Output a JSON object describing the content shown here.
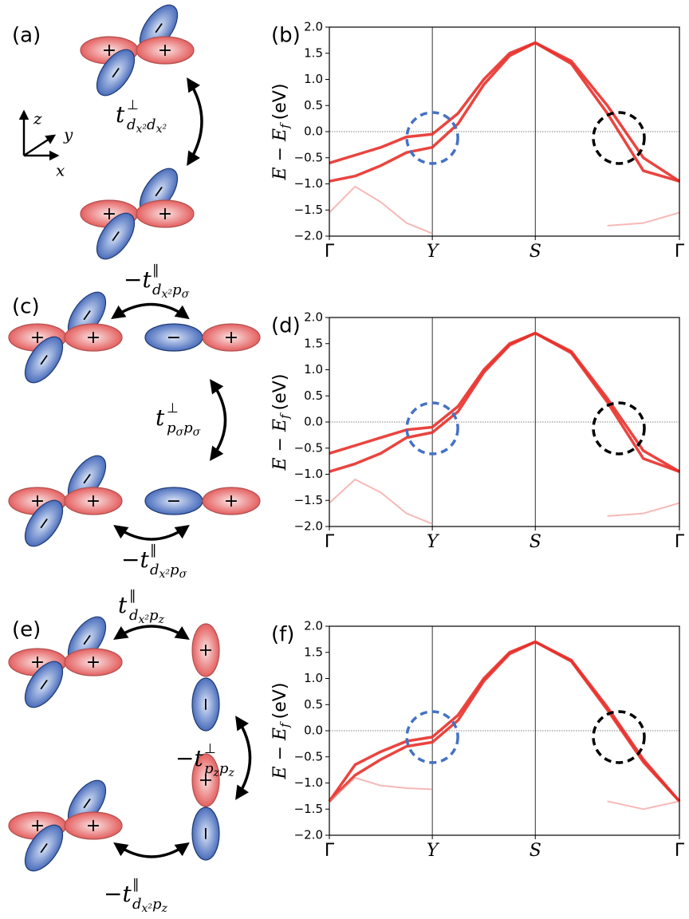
{
  "diagram": {
    "panels": [
      "(a)",
      "(c)",
      "(e)"
    ],
    "axes": {
      "z": "z",
      "y": "y",
      "x": "x"
    },
    "clusters": [
      {
        "signs": [
          "+",
          "+",
          "−",
          "−"
        ]
      },
      {
        "signs": [
          "+",
          "+",
          "−",
          "−"
        ]
      },
      {
        "signs": [
          "+",
          "+",
          "−",
          "−"
        ]
      },
      {
        "signs": [
          "+",
          "+",
          "−",
          "−"
        ]
      },
      {
        "signs": [
          "+",
          "+",
          "−",
          "−"
        ]
      },
      {
        "signs": [
          "+",
          "+",
          "−",
          "−"
        ]
      }
    ],
    "p_pairs": [
      {
        "signs": [
          "−",
          "+"
        ]
      },
      {
        "signs": [
          "−",
          "+"
        ]
      },
      {
        "signs": [
          "+",
          "−"
        ]
      },
      {
        "signs": [
          "+",
          "−"
        ]
      }
    ],
    "hoppings": [
      {
        "symbol": "t",
        "sup": "⊥",
        "sub": [
          {
            "s": "d",
            "ss": "x²"
          },
          {
            "s": "d",
            "ss": "x²"
          }
        ]
      },
      {
        "sign": "−",
        "symbol": "t",
        "sup": "∥",
        "sub": [
          {
            "s": "d",
            "ss": "x²"
          },
          {
            "s": "p",
            "ss": "σ"
          }
        ]
      },
      {
        "symbol": "t",
        "sup": "⊥",
        "sub": [
          {
            "s": "p",
            "ss": "σ"
          },
          {
            "s": "p",
            "ss": "σ"
          }
        ]
      },
      {
        "sign": "−",
        "symbol": "t",
        "sup": "∥",
        "sub": [
          {
            "s": "d",
            "ss": "x²"
          },
          {
            "s": "p",
            "ss": "σ"
          }
        ]
      },
      {
        "symbol": "t",
        "sup": "∥",
        "sub": [
          {
            "s": "d",
            "ss": "x²"
          },
          {
            "s": "p",
            "ss": "z"
          }
        ]
      },
      {
        "sign": "−",
        "symbol": "t",
        "sup": "⊥",
        "sub": [
          {
            "s": "p",
            "ss": "z"
          },
          {
            "s": "p",
            "ss": "z"
          }
        ]
      },
      {
        "sign": "−",
        "symbol": "t",
        "sup": "∥",
        "sub": [
          {
            "s": "d",
            "ss": "x²"
          },
          {
            "s": "p",
            "ss": "z"
          }
        ]
      }
    ]
  },
  "chart_data": [
    {
      "type": "line",
      "panel": "(b)",
      "ylabel": {
        "main": "E − E",
        "sub": "f",
        "unit": "(eV)"
      },
      "xlim": [
        0,
        3.4
      ],
      "xticks": [
        {
          "value": 0,
          "label": "Γ"
        },
        {
          "value": 1,
          "label": "Y"
        },
        {
          "value": 2,
          "label": "S"
        },
        {
          "value": 3.4,
          "label": "Γ"
        }
      ],
      "ylim": [
        -2,
        2
      ],
      "yticks": [
        {
          "value": -2,
          "label": "−2.0"
        },
        {
          "value": -1.5,
          "label": "−1.5"
        },
        {
          "value": -1,
          "label": "−1.0"
        },
        {
          "value": -0.5,
          "label": "−0.5"
        },
        {
          "value": 0,
          "label": "0.0"
        },
        {
          "value": 0.5,
          "label": "0.5"
        },
        {
          "value": 1,
          "label": "1.0"
        },
        {
          "value": 1.5,
          "label": "1.5"
        },
        {
          "value": 2,
          "label": "2.0"
        }
      ],
      "x": [
        0,
        0.25,
        0.5,
        0.75,
        1,
        1.25,
        1.5,
        1.75,
        2,
        2.35,
        2.7,
        3.05,
        3.4
      ],
      "series": [
        {
          "color": "#e8302a",
          "values": [
            -0.6,
            -0.45,
            -0.3,
            -0.1,
            -0.05,
            0.35,
            1.0,
            1.5,
            1.7,
            1.35,
            0.5,
            -0.5,
            -0.95
          ]
        },
        {
          "color": "#e8302a",
          "values": [
            -0.95,
            -0.85,
            -0.65,
            -0.4,
            -0.3,
            0.15,
            0.9,
            1.45,
            1.7,
            1.3,
            0.35,
            -0.75,
            -0.95
          ]
        },
        {
          "color": "#f08a86",
          "values": [
            -1.55,
            -1.05,
            -1.35,
            -1.75,
            -1.95,
            null,
            null,
            null,
            null,
            null,
            -1.8,
            -1.75,
            -1.55
          ]
        }
      ]
    },
    {
      "type": "line",
      "panel": "(d)",
      "ylabel": {
        "main": "E − E",
        "sub": "f",
        "unit": "(eV)"
      },
      "xlim": [
        0,
        3.4
      ],
      "xticks": [
        {
          "value": 0,
          "label": "Γ"
        },
        {
          "value": 1,
          "label": "Y"
        },
        {
          "value": 2,
          "label": "S"
        },
        {
          "value": 3.4,
          "label": "Γ"
        }
      ],
      "ylim": [
        -2,
        2
      ],
      "yticks": [
        {
          "value": -2,
          "label": "−2.0"
        },
        {
          "value": -1.5,
          "label": "−1.5"
        },
        {
          "value": -1,
          "label": "−1.0"
        },
        {
          "value": -0.5,
          "label": "−0.5"
        },
        {
          "value": 0,
          "label": "0.0"
        },
        {
          "value": 0.5,
          "label": "0.5"
        },
        {
          "value": 1,
          "label": "1.0"
        },
        {
          "value": 1.5,
          "label": "1.5"
        },
        {
          "value": 2,
          "label": "2.0"
        }
      ],
      "x": [
        0,
        0.25,
        0.5,
        0.75,
        1,
        1.25,
        1.5,
        1.75,
        2,
        2.35,
        2.7,
        3.05,
        3.4
      ],
      "series": [
        {
          "color": "#e8302a",
          "values": [
            -0.6,
            -0.45,
            -0.3,
            -0.15,
            -0.1,
            0.3,
            1.0,
            1.5,
            1.7,
            1.35,
            0.45,
            -0.55,
            -0.95
          ]
        },
        {
          "color": "#e8302a",
          "values": [
            -0.95,
            -0.8,
            -0.6,
            -0.3,
            -0.2,
            0.2,
            0.95,
            1.47,
            1.7,
            1.32,
            0.38,
            -0.7,
            -0.95
          ]
        },
        {
          "color": "#f08a86",
          "values": [
            -1.55,
            -1.1,
            -1.35,
            -1.75,
            -1.95,
            null,
            null,
            null,
            null,
            null,
            -1.8,
            -1.75,
            -1.55
          ]
        }
      ]
    },
    {
      "type": "line",
      "panel": "(f)",
      "ylabel": {
        "main": "E − E",
        "sub": "f",
        "unit": "(eV)"
      },
      "xlim": [
        0,
        3.4
      ],
      "xticks": [
        {
          "value": 0,
          "label": "Γ"
        },
        {
          "value": 1,
          "label": "Y"
        },
        {
          "value": 2,
          "label": "S"
        },
        {
          "value": 3.4,
          "label": "Γ"
        }
      ],
      "ylim": [
        -2,
        2
      ],
      "yticks": [
        {
          "value": -2,
          "label": "−2.0"
        },
        {
          "value": -1.5,
          "label": "−1.5"
        },
        {
          "value": -1,
          "label": "−1.0"
        },
        {
          "value": -0.5,
          "label": "−0.5"
        },
        {
          "value": 0,
          "label": "0.0"
        },
        {
          "value": 0.5,
          "label": "0.5"
        },
        {
          "value": 1,
          "label": "1.0"
        },
        {
          "value": 1.5,
          "label": "1.5"
        },
        {
          "value": 2,
          "label": "2.0"
        }
      ],
      "x": [
        0,
        0.25,
        0.5,
        0.75,
        1,
        1.25,
        1.5,
        1.75,
        2,
        2.35,
        2.7,
        3.05,
        3.4
      ],
      "series": [
        {
          "color": "#e8302a",
          "values": [
            -1.35,
            -0.65,
            -0.4,
            -0.2,
            -0.12,
            0.3,
            1.0,
            1.5,
            1.7,
            1.35,
            0.45,
            -0.55,
            -1.35
          ]
        },
        {
          "color": "#e8302a",
          "values": [
            -1.35,
            -0.85,
            -0.55,
            -0.3,
            -0.22,
            0.2,
            0.95,
            1.47,
            1.7,
            1.33,
            0.4,
            -0.6,
            -1.35
          ]
        },
        {
          "color": "#f08a86",
          "values": [
            -1.35,
            -0.9,
            -1.05,
            -1.1,
            -1.12,
            null,
            null,
            null,
            null,
            null,
            -1.35,
            -1.5,
            -1.35
          ]
        }
      ]
    }
  ]
}
